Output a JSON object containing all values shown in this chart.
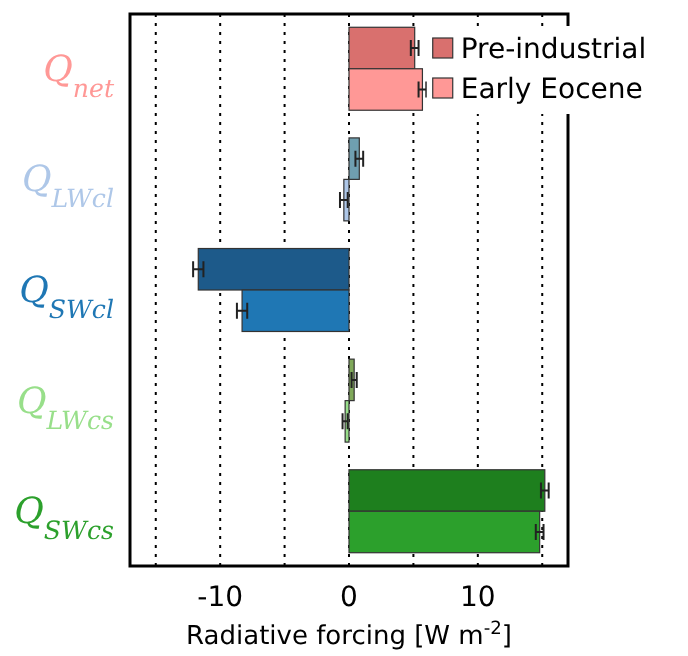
{
  "chart_data": {
    "type": "bar",
    "orientation": "horizontal",
    "categories": [
      "Q$_{net}$",
      "Q$_{LWcl}$",
      "Q$_{SWcl}$",
      "Q$_{LWcs}$",
      "Q$_{SWcs}$"
    ],
    "series": [
      {
        "name": "Pre-industrial",
        "colors": [
          "#d9706e",
          "#6f9fb0",
          "#1d5a8a",
          "#7fa85a",
          "#1e7f1e"
        ],
        "values": [
          5.1,
          0.8,
          -11.7,
          0.4,
          15.2
        ],
        "errors": [
          0.3,
          0.3,
          0.4,
          0.2,
          0.3
        ]
      },
      {
        "name": "Early Eocene",
        "colors": [
          "#ff9896",
          "#aec7e8",
          "#1f77b4",
          "#98df8a",
          "#2ca02c"
        ],
        "values": [
          5.7,
          -0.4,
          -8.3,
          -0.3,
          14.8
        ],
        "errors": [
          0.3,
          0.3,
          0.4,
          0.2,
          0.3
        ]
      }
    ],
    "xlim": [
      -17,
      17
    ],
    "xticks": [
      {
        "value": -15,
        "label": null
      },
      -10,
      {
        "value": -5,
        "label": null
      },
      0,
      {
        "value": 5,
        "label": null
      },
      10,
      {
        "value": 15,
        "label": null
      }
    ],
    "xlabel": "Radiative forcing [W m$^{-2}$]",
    "grid": "x",
    "legend": "top right"
  }
}
